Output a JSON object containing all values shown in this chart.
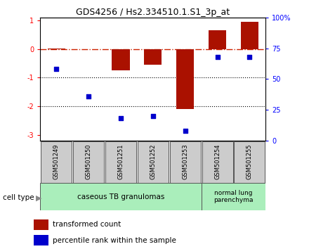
{
  "title": "GDS4256 / Hs2.334510.1.S1_3p_at",
  "samples": [
    "GSM501249",
    "GSM501250",
    "GSM501251",
    "GSM501252",
    "GSM501253",
    "GSM501254",
    "GSM501255"
  ],
  "transformed_count": [
    0.02,
    -0.02,
    -0.75,
    -0.55,
    -2.1,
    0.65,
    0.95
  ],
  "percentile_rank": [
    58,
    36,
    18,
    20,
    8,
    68,
    68
  ],
  "bar_color": "#AA1100",
  "dot_color": "#0000CC",
  "dash_color": "#CC2200",
  "ylim_left": [
    -3.2,
    1.1
  ],
  "ylim_right": [
    0,
    100
  ],
  "yticks_left": [
    -3,
    -2,
    -1,
    0,
    1
  ],
  "yticks_right": [
    0,
    25,
    50,
    75,
    100
  ],
  "ytick_labels_right": [
    "0",
    "25",
    "50",
    "75",
    "100%"
  ],
  "hline_y": 0,
  "dotted_lines": [
    -1,
    -2
  ],
  "group1_label": "caseous TB granulomas",
  "group2_label": "normal lung\nparenchyma",
  "cell_type_label": "cell type",
  "legend_bar_label": "transformed count",
  "legend_dot_label": "percentile rank within the sample",
  "group1_color": "#AAEEBB",
  "group2_color": "#AAEEBB",
  "sample_box_color": "#CCCCCC",
  "bar_width": 0.55
}
